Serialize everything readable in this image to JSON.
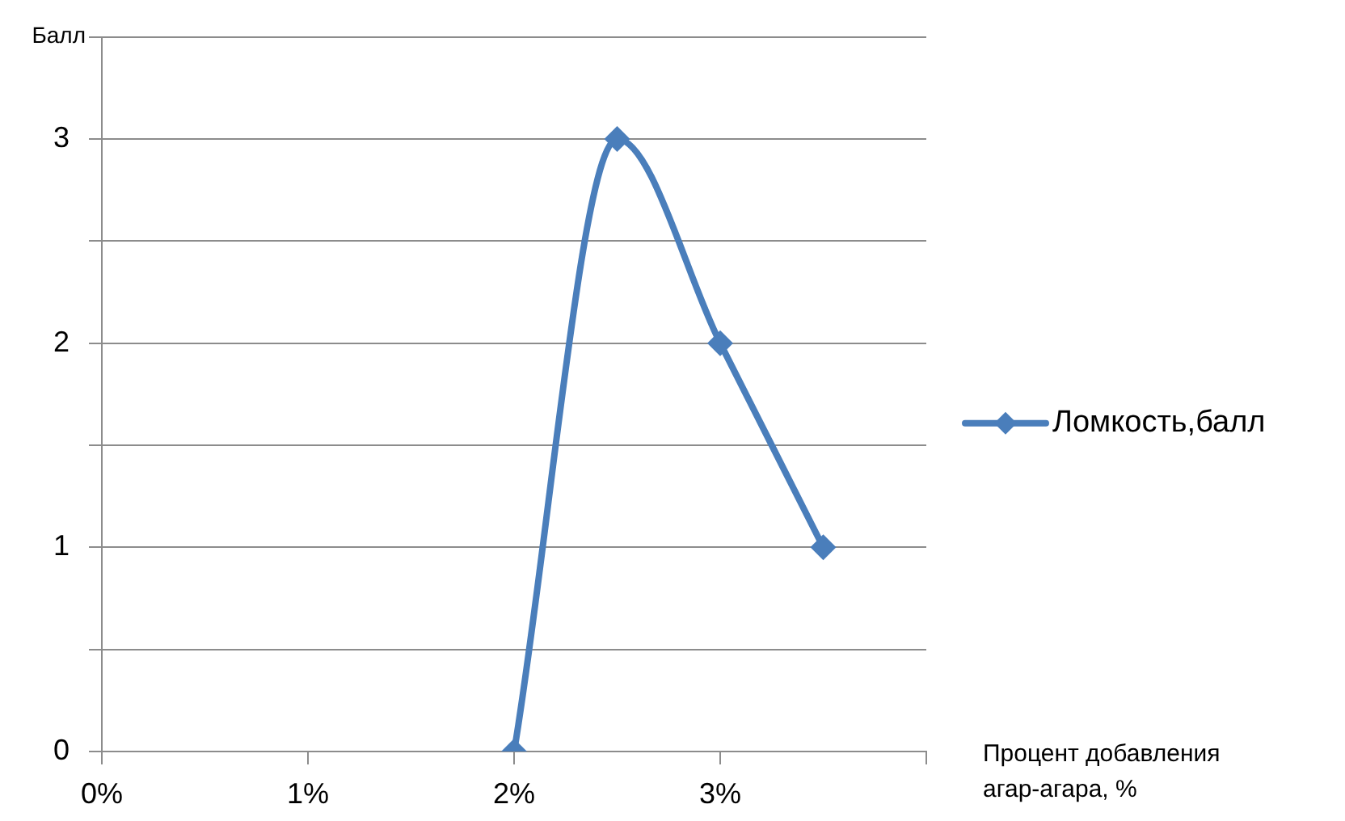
{
  "chart_data": {
    "type": "line",
    "ylabel": "Балл",
    "xlabel": "Процент добавления агар-агара, %",
    "x": [
      2,
      2.5,
      3,
      3.5
    ],
    "series": [
      {
        "name": "Ломкость,балл",
        "color": "#4a7ebb",
        "values": [
          0,
          3,
          2,
          1
        ]
      }
    ],
    "xlim": [
      0,
      4
    ],
    "xticks": [
      {
        "value": 0,
        "label": "0%"
      },
      {
        "value": 1,
        "label": "1%"
      },
      {
        "value": 2,
        "label": "2%"
      },
      {
        "value": 3,
        "label": "3%"
      },
      {
        "value": 4,
        "label": null
      }
    ],
    "ylim": [
      0,
      3.5
    ],
    "yticks": [
      0,
      {
        "value": 0.5,
        "label": null
      },
      1,
      {
        "value": 1.5,
        "label": null
      },
      2,
      {
        "value": 2.5,
        "label": null
      },
      3,
      {
        "value": 3.5,
        "label": null
      }
    ],
    "grid": "y",
    "legend": "right",
    "marker": "diamond",
    "line_style": "solid"
  }
}
